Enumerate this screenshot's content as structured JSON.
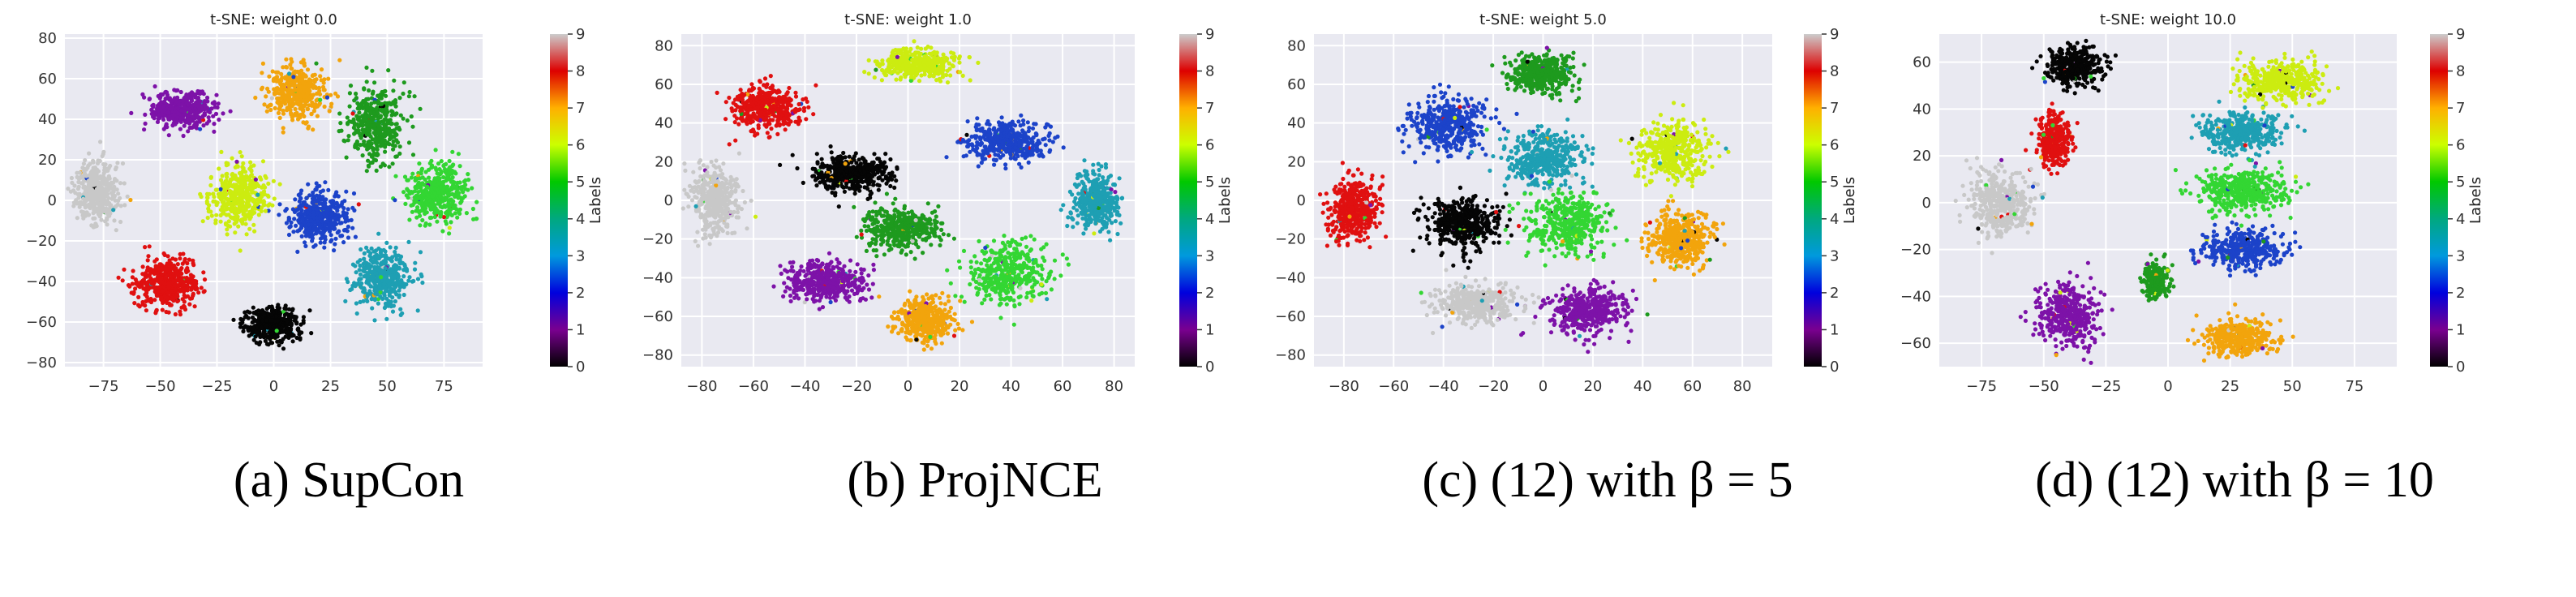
{
  "chart_data": [
    {
      "type": "scatter",
      "title": "t-SNE: weight 0.0",
      "caption": "(a) SupCon",
      "xticks": [
        -75,
        -50,
        -25,
        0,
        25,
        50,
        75
      ],
      "yticks": [
        -80,
        -60,
        -40,
        -20,
        0,
        20,
        40,
        60,
        80
      ],
      "xlim": [
        -92,
        92
      ],
      "ylim": [
        -82,
        82
      ],
      "colorbar": {
        "label": "Labels",
        "ticks": [
          0,
          1,
          2,
          3,
          4,
          5,
          6,
          7,
          8,
          9
        ],
        "range": [
          0,
          9
        ]
      },
      "grid": true,
      "clusters": [
        {
          "label": 0,
          "center": [
            -1,
            -61
          ],
          "spread": [
            11,
            7
          ],
          "count": 420
        },
        {
          "label": 1,
          "center": [
            -40,
            45
          ],
          "spread": [
            13,
            8
          ],
          "count": 440
        },
        {
          "label": 2,
          "center": [
            20,
            -8
          ],
          "spread": [
            12,
            12
          ],
          "count": 430
        },
        {
          "label": 3,
          "center": [
            48,
            -38
          ],
          "spread": [
            11,
            12
          ],
          "count": 420
        },
        {
          "label": 4,
          "center": [
            45,
            38
          ],
          "spread": [
            11,
            16
          ],
          "count": 430
        },
        {
          "label": 5,
          "center": [
            72,
            3
          ],
          "spread": [
            12,
            13
          ],
          "count": 440
        },
        {
          "label": 6,
          "center": [
            -15,
            3
          ],
          "spread": [
            11,
            13
          ],
          "count": 450
        },
        {
          "label": 7,
          "center": [
            10,
            53
          ],
          "spread": [
            11,
            12
          ],
          "count": 430
        },
        {
          "label": 8,
          "center": [
            -47,
            -41
          ],
          "spread": [
            12,
            11
          ],
          "count": 460
        },
        {
          "label": 9,
          "center": [
            -78,
            4
          ],
          "spread": [
            9,
            13
          ],
          "count": 420
        }
      ]
    },
    {
      "type": "scatter",
      "title": "t-SNE: weight 1.0",
      "caption": "(b) ProjNCE",
      "xticks": [
        -80,
        -60,
        -40,
        -20,
        0,
        20,
        40,
        60,
        80
      ],
      "yticks": [
        -80,
        -60,
        -40,
        -20,
        0,
        20,
        40,
        60,
        80
      ],
      "xlim": [
        -88,
        88
      ],
      "ylim": [
        -86,
        86
      ],
      "colorbar": {
        "label": "Labels",
        "ticks": [
          0,
          1,
          2,
          3,
          4,
          5,
          6,
          7,
          8,
          9
        ],
        "range": [
          0,
          9
        ]
      },
      "grid": true,
      "clusters": [
        {
          "label": 0,
          "center": [
            -22,
            14
          ],
          "spread": [
            14,
            8
          ],
          "count": 430
        },
        {
          "label": 1,
          "center": [
            -32,
            -42
          ],
          "spread": [
            13,
            9
          ],
          "count": 430
        },
        {
          "label": 2,
          "center": [
            38,
            30
          ],
          "spread": [
            14,
            9
          ],
          "count": 420
        },
        {
          "label": 3,
          "center": [
            73,
            0
          ],
          "spread": [
            8,
            13
          ],
          "count": 420
        },
        {
          "label": 4,
          "center": [
            -3,
            -15
          ],
          "spread": [
            13,
            10
          ],
          "count": 440
        },
        {
          "label": 5,
          "center": [
            40,
            -38
          ],
          "spread": [
            14,
            14
          ],
          "count": 430
        },
        {
          "label": 6,
          "center": [
            3,
            70
          ],
          "spread": [
            14,
            7
          ],
          "count": 410
        },
        {
          "label": 7,
          "center": [
            6,
            -62
          ],
          "spread": [
            10,
            10
          ],
          "count": 430
        },
        {
          "label": 8,
          "center": [
            -55,
            48
          ],
          "spread": [
            12,
            10
          ],
          "count": 440
        },
        {
          "label": 9,
          "center": [
            -75,
            0
          ],
          "spread": [
            8,
            15
          ],
          "count": 420
        }
      ]
    },
    {
      "type": "scatter",
      "title": "t-SNE: weight 5.0",
      "caption": "(c) (12) with β = 5",
      "xticks": [
        -80,
        -60,
        -40,
        -20,
        0,
        20,
        40,
        60,
        80
      ],
      "yticks": [
        -80,
        -60,
        -40,
        -20,
        0,
        20,
        40,
        60,
        80
      ],
      "xlim": [
        -92,
        92
      ],
      "ylim": [
        -86,
        86
      ],
      "colorbar": {
        "label": "Labels",
        "ticks": [
          0,
          1,
          2,
          3,
          4,
          5,
          6,
          7,
          8,
          9
        ],
        "range": [
          0,
          9
        ]
      },
      "grid": true,
      "clusters": [
        {
          "label": 0,
          "center": [
            -32,
            -12
          ],
          "spread": [
            13,
            12
          ],
          "count": 440
        },
        {
          "label": 1,
          "center": [
            18,
            -57
          ],
          "spread": [
            14,
            11
          ],
          "count": 440
        },
        {
          "label": 2,
          "center": [
            -38,
            38
          ],
          "spread": [
            14,
            13
          ],
          "count": 430
        },
        {
          "label": 3,
          "center": [
            0,
            22
          ],
          "spread": [
            14,
            12
          ],
          "count": 430
        },
        {
          "label": 4,
          "center": [
            0,
            66
          ],
          "spread": [
            12,
            9
          ],
          "count": 420
        },
        {
          "label": 5,
          "center": [
            10,
            -12
          ],
          "spread": [
            14,
            14
          ],
          "count": 440
        },
        {
          "label": 6,
          "center": [
            52,
            25
          ],
          "spread": [
            13,
            14
          ],
          "count": 430
        },
        {
          "label": 7,
          "center": [
            55,
            -20
          ],
          "spread": [
            11,
            13
          ],
          "count": 430
        },
        {
          "label": 8,
          "center": [
            -76,
            -5
          ],
          "spread": [
            9,
            14
          ],
          "count": 440
        },
        {
          "label": 9,
          "center": [
            -27,
            -53
          ],
          "spread": [
            14,
            9
          ],
          "count": 420
        }
      ]
    },
    {
      "type": "scatter",
      "title": "t-SNE: weight 10.0",
      "caption": "(d) (12) with β = 10",
      "xticks": [
        -75,
        -50,
        -25,
        0,
        25,
        50,
        75
      ],
      "yticks": [
        -60,
        -40,
        -20,
        0,
        20,
        40,
        60
      ],
      "xlim": [
        -92,
        92
      ],
      "ylim": [
        -70,
        72
      ],
      "colorbar": {
        "label": "Labels",
        "ticks": [
          0,
          1,
          2,
          3,
          4,
          5,
          6,
          7,
          8,
          9
        ],
        "range": [
          0,
          9
        ]
      },
      "grid": true,
      "clusters": [
        {
          "label": 0,
          "center": [
            -38,
            58
          ],
          "spread": [
            10,
            7
          ],
          "count": 380
        },
        {
          "label": 1,
          "center": [
            -40,
            -48
          ],
          "spread": [
            11,
            12
          ],
          "count": 420
        },
        {
          "label": 2,
          "center": [
            30,
            -20
          ],
          "spread": [
            14,
            7
          ],
          "count": 410
        },
        {
          "label": 3,
          "center": [
            30,
            30
          ],
          "spread": [
            14,
            8
          ],
          "count": 400
        },
        {
          "label": 4,
          "center": [
            -5,
            -33
          ],
          "spread": [
            5,
            7
          ],
          "count": 200
        },
        {
          "label": 5,
          "center": [
            30,
            5
          ],
          "spread": [
            16,
            8
          ],
          "count": 440
        },
        {
          "label": 6,
          "center": [
            45,
            52
          ],
          "spread": [
            15,
            8
          ],
          "count": 410
        },
        {
          "label": 7,
          "center": [
            28,
            -58
          ],
          "spread": [
            13,
            7
          ],
          "count": 400
        },
        {
          "label": 8,
          "center": [
            -46,
            27
          ],
          "spread": [
            6,
            10
          ],
          "count": 340
        },
        {
          "label": 9,
          "center": [
            -68,
            0
          ],
          "spread": [
            12,
            12
          ],
          "count": 420
        }
      ]
    }
  ]
}
